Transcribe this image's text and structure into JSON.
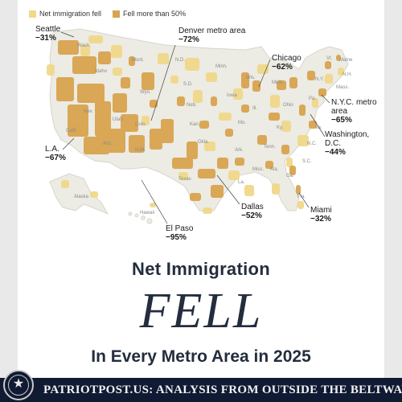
{
  "legend": {
    "items": [
      {
        "label": "Net immigration fell",
        "color": "#f1d98a"
      },
      {
        "label": "Fell more than 50%",
        "color": "#d9a44f"
      }
    ]
  },
  "colors": {
    "base": "#ecebe4",
    "light": "#f1d98a",
    "dark": "#d9a44f",
    "headline": "#232d3d",
    "footer_bg": "#101a33"
  },
  "metro_labels": [
    {
      "name": "Seattle",
      "pct": "−31%"
    },
    {
      "name": "Denver metro area",
      "pct": "−72%"
    },
    {
      "name": "Chicago",
      "pct": "−62%"
    },
    {
      "name": "N.Y.C. metro area",
      "pct": "−65%"
    },
    {
      "name": "Washington, D.C.",
      "pct": "−44%"
    },
    {
      "name": "L.A.",
      "pct": "−67%"
    },
    {
      "name": "Dallas",
      "pct": "−52%"
    },
    {
      "name": "Miami",
      "pct": "−32%"
    },
    {
      "name": "El Paso",
      "pct": "−95%"
    }
  ],
  "state_labels": [
    "Wash.",
    "Idaho",
    "Mont.",
    "N.D.",
    "S.D.",
    "Wyo.",
    "Nev.",
    "Utah",
    "Colo.",
    "Calif.",
    "Ariz.",
    "N.M.",
    "Neb.",
    "Kan.",
    "Okla.",
    "Texas",
    "Minn.",
    "Iowa",
    "Mo.",
    "Ark.",
    "La.",
    "Wis.",
    "Ill.",
    "Mich.",
    "Ohio",
    "Ky.",
    "Tenn.",
    "Miss.",
    "Ala.",
    "Ga.",
    "Fla.",
    "S.C.",
    "N.C.",
    "Va.",
    "Pa.",
    "N.Y.",
    "Vt.",
    "Maine",
    "N.H.",
    "Mass.",
    "Alaska",
    "Hawaii"
  ],
  "headline": {
    "line1": "Net Immigration",
    "line2": "FELL",
    "line3": "In Every Metro Area in 2025"
  },
  "footer": {
    "text": "PATRIOTPOST.US: ANALYSIS FROM OUTSIDE THE BELTWAY",
    "seal_icon": "star-seal-icon"
  }
}
